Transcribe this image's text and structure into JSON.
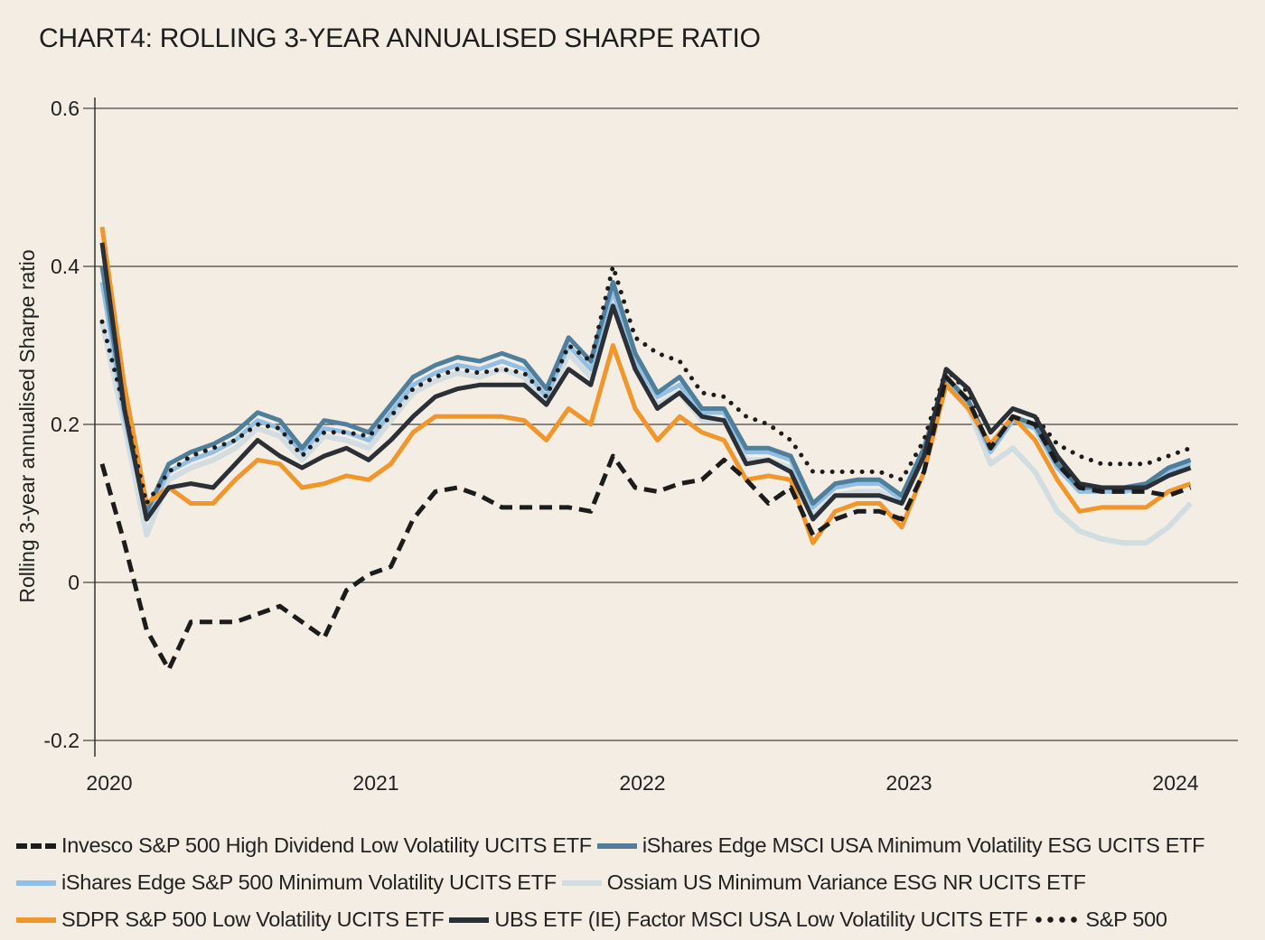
{
  "chart_data": {
    "type": "line",
    "title": "CHART4: ROLLING 3-YEAR ANNUALISED SHARPE RATIO",
    "xlabel": "",
    "ylabel": "Rolling 3-year annualised Sharpe ratio",
    "ylim": [
      -0.2,
      0.6
    ],
    "yticks": [
      "0.6",
      "0.4",
      "0.2",
      "0",
      "-0.2"
    ],
    "ytick_values": [
      0.6,
      0.4,
      0.2,
      0,
      -0.2
    ],
    "xticks": [
      "2020",
      "2021",
      "2022",
      "2023",
      "2024"
    ],
    "grid": "horizontal",
    "legend_position": "bottom",
    "start_month": "2020-01",
    "frequency": "monthly",
    "series": [
      {
        "name": "Invesco S&P 500 High Dividend Low Volatility UCITS ETF",
        "color": "#1c1c1c",
        "style": "dashed",
        "values": [
          0.15,
          0.05,
          -0.06,
          -0.11,
          -0.05,
          -0.05,
          -0.05,
          -0.04,
          -0.03,
          -0.05,
          -0.07,
          -0.01,
          0.01,
          0.02,
          0.08,
          0.115,
          0.12,
          0.11,
          0.095,
          0.095,
          0.095,
          0.095,
          0.09,
          0.16,
          0.12,
          0.115,
          0.125,
          0.13,
          0.155,
          0.13,
          0.1,
          0.12,
          0.06,
          0.08,
          0.09,
          0.09,
          0.08,
          0.14,
          0.26,
          0.23,
          0.17,
          0.21,
          0.2,
          0.15,
          0.12,
          0.115,
          0.115,
          0.115,
          0.11,
          0.12
        ]
      },
      {
        "name": "iShares Edge MSCI USA Minimum Volatility ESG UCITS ETF",
        "color": "#4f7f9b",
        "style": "solid",
        "values": [
          0.4,
          0.22,
          0.09,
          0.15,
          0.165,
          0.175,
          0.19,
          0.215,
          0.205,
          0.17,
          0.205,
          0.2,
          0.19,
          0.225,
          0.26,
          0.275,
          0.285,
          0.28,
          0.29,
          0.28,
          0.245,
          0.31,
          0.28,
          0.38,
          0.29,
          0.24,
          0.26,
          0.22,
          0.22,
          0.17,
          0.17,
          0.16,
          0.1,
          0.125,
          0.13,
          0.13,
          0.11,
          0.17,
          0.26,
          0.23,
          0.17,
          0.21,
          0.2,
          0.15,
          0.12,
          0.12,
          0.12,
          0.125,
          0.145,
          0.155
        ]
      },
      {
        "name": "iShares Edge S&P 500 Minimum Volatility UCITS ETF",
        "color": "#92bfe3",
        "style": "solid",
        "values": [
          0.38,
          0.21,
          0.085,
          0.14,
          0.155,
          0.165,
          0.18,
          0.205,
          0.195,
          0.165,
          0.195,
          0.19,
          0.18,
          0.215,
          0.25,
          0.265,
          0.275,
          0.27,
          0.28,
          0.27,
          0.235,
          0.3,
          0.27,
          0.37,
          0.28,
          0.235,
          0.25,
          0.215,
          0.215,
          0.165,
          0.165,
          0.155,
          0.095,
          0.12,
          0.125,
          0.125,
          0.105,
          0.165,
          0.255,
          0.225,
          0.165,
          0.205,
          0.195,
          0.145,
          0.115,
          0.115,
          0.115,
          0.12,
          0.14,
          0.15
        ]
      },
      {
        "name": "Ossiam US Minimum Variance ESG NR UCITS ETF",
        "color": "#d2dde1",
        "style": "solid",
        "values": [
          0.33,
          0.2,
          0.06,
          0.13,
          0.145,
          0.155,
          0.17,
          0.195,
          0.185,
          0.155,
          0.185,
          0.18,
          0.17,
          0.205,
          0.24,
          0.255,
          0.265,
          0.26,
          0.27,
          0.26,
          0.225,
          0.29,
          0.26,
          0.36,
          0.27,
          0.225,
          0.24,
          0.205,
          0.205,
          0.155,
          0.155,
          0.145,
          0.085,
          0.11,
          0.115,
          0.115,
          0.1,
          0.16,
          0.25,
          0.22,
          0.15,
          0.17,
          0.14,
          0.09,
          0.065,
          0.055,
          0.05,
          0.05,
          0.07,
          0.1
        ]
      },
      {
        "name": "SDPR S&P 500 Low Volatility UCITS ETF",
        "color": "#f0962a",
        "style": "solid",
        "values": [
          0.45,
          0.25,
          0.1,
          0.12,
          0.1,
          0.1,
          0.13,
          0.155,
          0.15,
          0.12,
          0.125,
          0.135,
          0.13,
          0.15,
          0.19,
          0.21,
          0.21,
          0.21,
          0.21,
          0.205,
          0.18,
          0.22,
          0.2,
          0.3,
          0.22,
          0.18,
          0.21,
          0.19,
          0.18,
          0.13,
          0.135,
          0.13,
          0.05,
          0.09,
          0.1,
          0.1,
          0.07,
          0.14,
          0.25,
          0.22,
          0.175,
          0.21,
          0.18,
          0.13,
          0.09,
          0.095,
          0.095,
          0.095,
          0.115,
          0.125
        ]
      },
      {
        "name": "UBS ETF (IE) Factor MSCI USA Low Volatility UCITS ETF",
        "color": "#2b2f36",
        "style": "solid",
        "values": [
          0.43,
          0.22,
          0.08,
          0.12,
          0.125,
          0.12,
          0.15,
          0.18,
          0.16,
          0.145,
          0.16,
          0.17,
          0.155,
          0.18,
          0.21,
          0.235,
          0.245,
          0.25,
          0.25,
          0.25,
          0.225,
          0.27,
          0.25,
          0.35,
          0.27,
          0.22,
          0.24,
          0.21,
          0.205,
          0.15,
          0.155,
          0.14,
          0.08,
          0.11,
          0.11,
          0.11,
          0.1,
          0.16,
          0.27,
          0.245,
          0.19,
          0.22,
          0.21,
          0.16,
          0.125,
          0.12,
          0.12,
          0.12,
          0.135,
          0.145
        ]
      },
      {
        "name": "S&P 500",
        "color": "#1c1c1c",
        "style": "dotted",
        "values": [
          0.33,
          0.22,
          0.1,
          0.14,
          0.16,
          0.17,
          0.18,
          0.2,
          0.195,
          0.16,
          0.19,
          0.19,
          0.185,
          0.21,
          0.245,
          0.26,
          0.27,
          0.265,
          0.27,
          0.265,
          0.235,
          0.3,
          0.28,
          0.4,
          0.31,
          0.29,
          0.28,
          0.24,
          0.235,
          0.21,
          0.2,
          0.18,
          0.14,
          0.14,
          0.14,
          0.14,
          0.13,
          0.18,
          0.27,
          0.24,
          0.19,
          0.22,
          0.21,
          0.175,
          0.16,
          0.15,
          0.15,
          0.15,
          0.16,
          0.17
        ]
      }
    ]
  }
}
